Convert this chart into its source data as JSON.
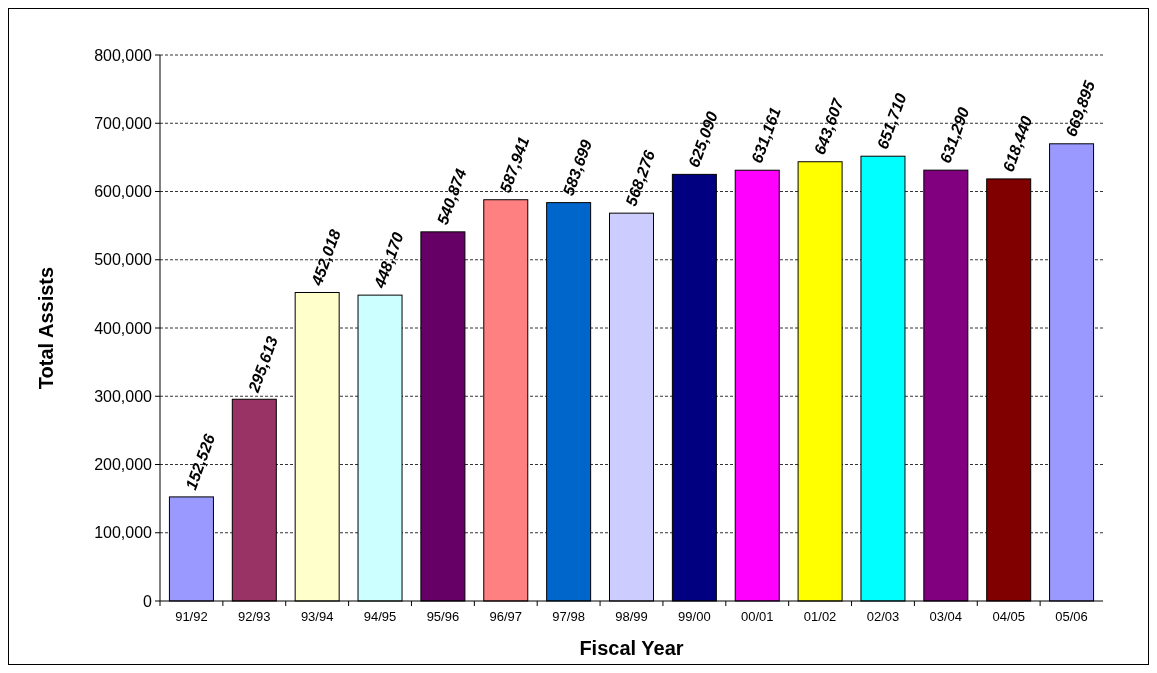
{
  "chart_data": {
    "type": "bar",
    "xlabel": "Fiscal Year",
    "ylabel": "Total Assists",
    "categories": [
      "91/92",
      "92/93",
      "93/94",
      "94/95",
      "95/96",
      "96/97",
      "97/98",
      "98/99",
      "99/00",
      "00/01",
      "01/02",
      "02/03",
      "03/04",
      "04/05",
      "05/06"
    ],
    "values": [
      152526,
      295613,
      452018,
      448170,
      540874,
      587941,
      583699,
      568276,
      625090,
      631161,
      643607,
      651710,
      631290,
      618440,
      669895
    ],
    "colors": [
      "#9999ff",
      "#993366",
      "#ffffcc",
      "#ccffff",
      "#660066",
      "#ff8080",
      "#0066cc",
      "#ccccff",
      "#000080",
      "#ff00ff",
      "#ffff00",
      "#00ffff",
      "#800080",
      "#800000",
      "#9999ff"
    ],
    "ylim": [
      0,
      800000
    ],
    "yticks": [
      0,
      {
        "value": 100000,
        "label": "100,000"
      },
      {
        "value": 200000,
        "label": "200,000"
      },
      {
        "value": 300000,
        "label": "300,000"
      },
      {
        "value": 400000,
        "label": "400,000"
      },
      {
        "value": 500000,
        "label": "500,000"
      },
      {
        "value": 600000,
        "label": "600,000"
      },
      {
        "value": 700000,
        "label": "700,000"
      },
      {
        "value": 800000,
        "label": "800,000"
      }
    ],
    "value_labels": [
      "152,526",
      "295,613",
      "452,018",
      "448,170",
      "540,874",
      "587,941",
      "583,699",
      "568,276",
      "625,090",
      "631,161",
      "643,607",
      "651,710",
      "631,290",
      "618,440",
      "669,895"
    ],
    "grid": "y"
  }
}
